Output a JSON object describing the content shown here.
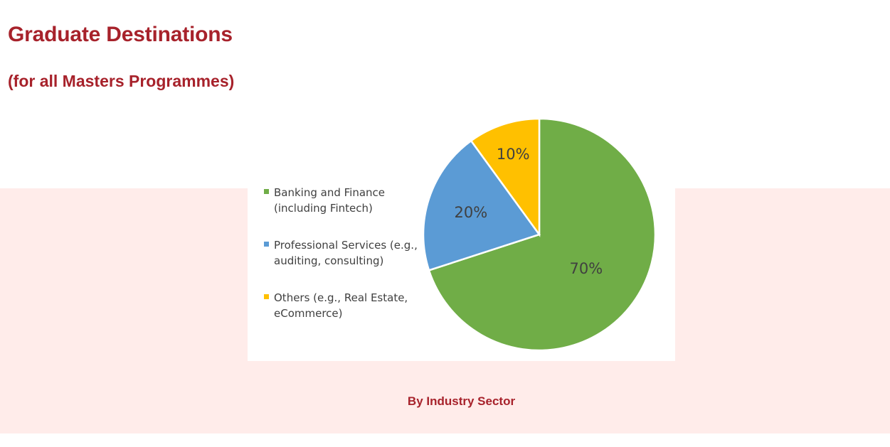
{
  "header": {
    "title": "Graduate Destinations",
    "subtitle": "(for all Masters Programmes)"
  },
  "decoration": {
    "quote_glyph": "”"
  },
  "caption": "By Industry Sector",
  "colors": {
    "accent": "#a7222b",
    "band_background": "#ffecea",
    "banking": "#70ad47",
    "professional": "#5b9bd5",
    "others": "#ffc000",
    "text": "#404040"
  },
  "chart_data": {
    "type": "pie",
    "title": "",
    "categories": [
      "Banking and Finance (including Fintech)",
      "Professional Services (e.g., auditing, consulting)",
      "Others (e.g., Real Estate, eCommerce)"
    ],
    "values": [
      70,
      20,
      10
    ],
    "data_labels": [
      "70%",
      "20%",
      "10%"
    ],
    "legend": {
      "placement": "left",
      "entries": [
        {
          "lines": [
            "Banking and Finance",
            "(including Fintech)"
          ],
          "color": "#70ad47"
        },
        {
          "lines": [
            "Professional Services (e.g.,",
            "auditing, consulting)"
          ],
          "color": "#5b9bd5"
        },
        {
          "lines": [
            "Others (e.g., Real Estate,",
            "eCommerce)"
          ],
          "color": "#ffc000"
        }
      ]
    }
  }
}
